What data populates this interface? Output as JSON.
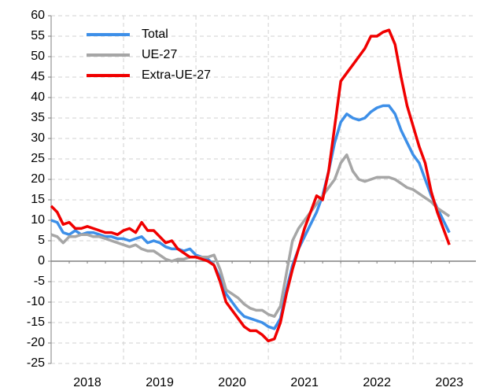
{
  "chart_data": {
    "type": "line",
    "categories": [
      null,
      null,
      null,
      null,
      null,
      null,
      "2018",
      null,
      null,
      null,
      null,
      null,
      null,
      null,
      null,
      null,
      null,
      null,
      "2019",
      null,
      null,
      null,
      null,
      null,
      null,
      null,
      null,
      null,
      null,
      null,
      "2020",
      null,
      null,
      null,
      null,
      null,
      null,
      null,
      null,
      null,
      null,
      null,
      "2021",
      null,
      null,
      null,
      null,
      null,
      null,
      null,
      null,
      null,
      null,
      null,
      "2022",
      null,
      null,
      null,
      null,
      null,
      null,
      null,
      null,
      null,
      null,
      null,
      "2023"
    ],
    "series": [
      {
        "name": "Total",
        "color": "#3d8fe8",
        "values": [
          10,
          9.5,
          7,
          6.5,
          7.5,
          6.5,
          7,
          7,
          6.5,
          6,
          6,
          5.5,
          5.5,
          5,
          5.5,
          6,
          4.5,
          5,
          4.5,
          3.5,
          3,
          3,
          2.5,
          3,
          1.5,
          1,
          0.5,
          -1,
          -4,
          -8,
          -10,
          -12,
          -13.5,
          -14,
          -14.5,
          -15,
          -16,
          -16.5,
          -14,
          -7,
          -1,
          3,
          6,
          9,
          12,
          16,
          22,
          29,
          34,
          36,
          35,
          34.5,
          35,
          36.5,
          37.5,
          38,
          38,
          36,
          32,
          29,
          26,
          24,
          20,
          16,
          13,
          10,
          7
        ]
      },
      {
        "name": "UE-27",
        "color": "#a6a6a6",
        "values": [
          6.5,
          6,
          4.5,
          6,
          6,
          6.5,
          6.5,
          6,
          6,
          5.5,
          5,
          4.5,
          4,
          3.5,
          4,
          3,
          2.5,
          2.5,
          1.5,
          0.5,
          0,
          0.5,
          0.5,
          1,
          1,
          1,
          1,
          1.5,
          -2,
          -7,
          -8,
          -9,
          -10.5,
          -11.5,
          -12,
          -12,
          -13,
          -13.5,
          -11,
          -3,
          5,
          8,
          10,
          12,
          14,
          16,
          18,
          20,
          24,
          26,
          22,
          20,
          19.5,
          20,
          20.5,
          20.5,
          20.5,
          20,
          19,
          18,
          17.5,
          16.5,
          15.5,
          14.5,
          13,
          12,
          11
        ]
      },
      {
        "name": "Extra-UE-27",
        "color": "#f00000",
        "values": [
          13.5,
          12,
          9,
          9.5,
          8,
          8,
          8.5,
          8,
          7.5,
          7,
          7,
          6.5,
          7.5,
          8,
          7,
          9.5,
          7.5,
          7.5,
          6,
          4.5,
          5,
          3,
          2,
          1,
          1,
          0.5,
          0,
          -1,
          -5,
          -10,
          -12,
          -14,
          -16,
          -17,
          -17,
          -18,
          -19.5,
          -19,
          -15,
          -8,
          -2,
          3,
          8,
          12,
          16,
          15,
          22,
          33,
          44,
          46,
          48,
          50,
          52,
          55,
          55,
          56,
          56.5,
          53,
          45,
          38,
          33,
          28,
          24,
          17,
          12,
          8,
          4
        ]
      }
    ],
    "ylim": [
      -25,
      60
    ],
    "yticks": [
      -25,
      -20,
      -15,
      -10,
      -5,
      0,
      5,
      10,
      15,
      20,
      25,
      30,
      35,
      40,
      45,
      50,
      55,
      60
    ],
    "grid": true,
    "legend": "upper left"
  }
}
